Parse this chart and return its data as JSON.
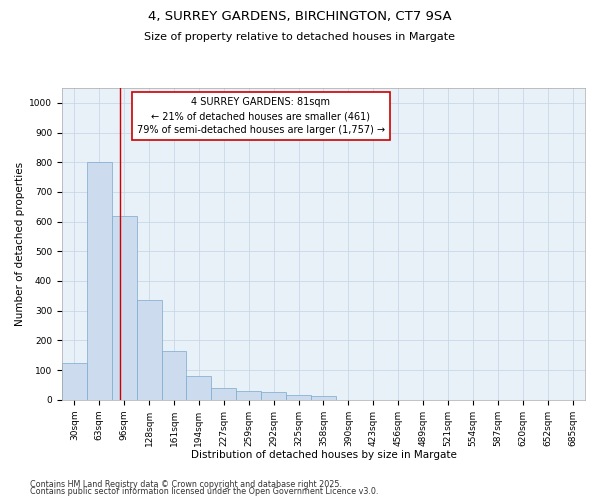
{
  "title": "4, SURREY GARDENS, BIRCHINGTON, CT7 9SA",
  "subtitle": "Size of property relative to detached houses in Margate",
  "xlabel": "Distribution of detached houses by size in Margate",
  "ylabel": "Number of detached properties",
  "categories": [
    "30sqm",
    "63sqm",
    "96sqm",
    "128sqm",
    "161sqm",
    "194sqm",
    "227sqm",
    "259sqm",
    "292sqm",
    "325sqm",
    "358sqm",
    "390sqm",
    "423sqm",
    "456sqm",
    "489sqm",
    "521sqm",
    "554sqm",
    "587sqm",
    "620sqm",
    "652sqm",
    "685sqm"
  ],
  "values": [
    125,
    800,
    620,
    335,
    165,
    80,
    40,
    28,
    25,
    15,
    12,
    0,
    0,
    0,
    0,
    0,
    0,
    0,
    0,
    0,
    0
  ],
  "bar_color": "#ccdcee",
  "bar_edge_color": "#7aaace",
  "vline_x": 1.85,
  "vline_color": "#cc0000",
  "annotation_text": "4 SURREY GARDENS: 81sqm\n← 21% of detached houses are smaller (461)\n79% of semi-detached houses are larger (1,757) →",
  "ylim": [
    0,
    1050
  ],
  "yticks": [
    0,
    100,
    200,
    300,
    400,
    500,
    600,
    700,
    800,
    900,
    1000
  ],
  "grid_color": "#c8d8e8",
  "background_color": "#e8f0f8",
  "footer_line1": "Contains HM Land Registry data © Crown copyright and database right 2025.",
  "footer_line2": "Contains public sector information licensed under the Open Government Licence v3.0.",
  "title_fontsize": 9.5,
  "subtitle_fontsize": 8,
  "axis_label_fontsize": 7.5,
  "tick_fontsize": 6.5,
  "annotation_fontsize": 7,
  "footer_fontsize": 5.8
}
